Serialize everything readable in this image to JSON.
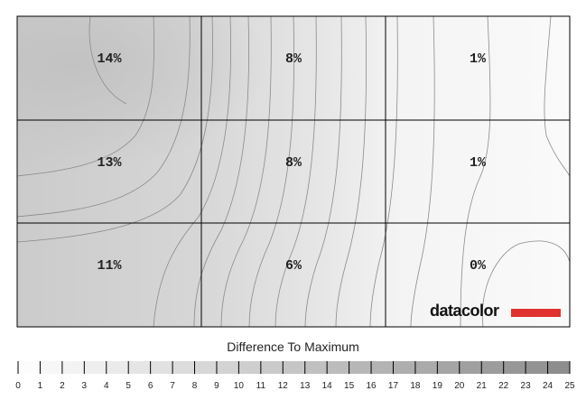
{
  "chart_data": {
    "type": "heatmap",
    "grid": {
      "rows": 3,
      "cols": 3
    },
    "cells": [
      [
        "14%",
        "8%",
        "1%"
      ],
      [
        "13%",
        "8%",
        "1%"
      ],
      [
        "11%",
        "6%",
        "0%"
      ]
    ],
    "legend": {
      "title": "Difference To Maximum",
      "ticks": [
        "0",
        "1",
        "2",
        "3",
        "4",
        "5",
        "6",
        "7",
        "8",
        "9",
        "10",
        "11",
        "12",
        "13",
        "14",
        "15",
        "16",
        "17",
        "18",
        "19",
        "20",
        "21",
        "22",
        "23",
        "24",
        "25"
      ]
    },
    "brand": "datacolor",
    "colors": {
      "brand_bar": "#e0322e",
      "grid_line": "#000000",
      "contour": "#8a8a8a"
    }
  }
}
